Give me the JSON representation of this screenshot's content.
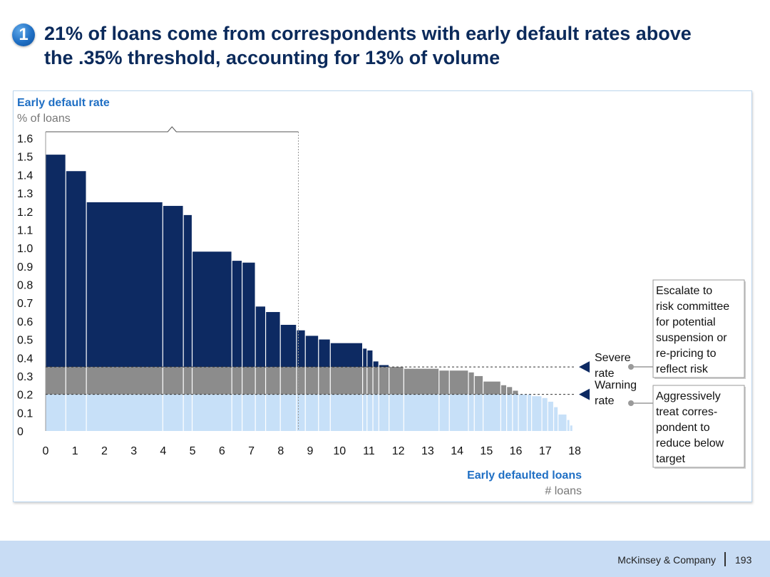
{
  "header": {
    "badge_number": "1",
    "title_line1": "21% of loans come from correspondents with early default rates above",
    "title_line2": "the .35% threshold, accounting for 13% of volume"
  },
  "chart_data": {
    "type": "bar",
    "title": "Early default rate",
    "subtitle": "% of loans",
    "xlabel": "Early defaulted loans",
    "xlabel_unit": "# loans",
    "xlim": [
      0,
      18
    ],
    "ylim": [
      0,
      1.6
    ],
    "x_ticks": [
      "0",
      "1",
      "2",
      "3",
      "4",
      "5",
      "6",
      "7",
      "8",
      "9",
      "10",
      "11",
      "12",
      "13",
      "14",
      "15",
      "16",
      "17",
      "18"
    ],
    "y_ticks": [
      "0",
      "0.1",
      "0.2",
      "0.3",
      "0.4",
      "0.5",
      "0.6",
      "0.7",
      "0.8",
      "0.9",
      "1.0",
      "1.1",
      "1.2",
      "1.3",
      "1.4",
      "1.5",
      "1.6"
    ],
    "bracket_end_x": 8.6,
    "colors": {
      "severe": "#0d2a62",
      "warning": "#8c8c8c",
      "below": "#c7e0f8"
    },
    "thresholds": [
      {
        "name": "severe",
        "value": 0.35,
        "label_line1": "Severe",
        "label_line2": "rate",
        "callout": [
          "Escalate to",
          "risk committee",
          "for potential",
          "suspension or",
          "re-pricing to",
          "reflect risk"
        ]
      },
      {
        "name": "warning",
        "value": 0.2,
        "label_line1": "Warning",
        "label_line2": "rate",
        "callout": [
          "Aggressively",
          "treat corres-",
          "pondent to",
          "reduce below",
          "target"
        ]
      }
    ],
    "bars": [
      {
        "x0": 0.0,
        "x1": 0.7,
        "value": 1.51
      },
      {
        "x0": 0.7,
        "x1": 1.4,
        "value": 1.42
      },
      {
        "x0": 1.4,
        "x1": 4.0,
        "value": 1.25
      },
      {
        "x0": 4.0,
        "x1": 4.7,
        "value": 1.23
      },
      {
        "x0": 4.7,
        "x1": 5.0,
        "value": 1.18
      },
      {
        "x0": 5.0,
        "x1": 6.35,
        "value": 0.98
      },
      {
        "x0": 6.35,
        "x1": 6.7,
        "value": 0.93
      },
      {
        "x0": 6.7,
        "x1": 7.15,
        "value": 0.92
      },
      {
        "x0": 7.15,
        "x1": 7.5,
        "value": 0.68
      },
      {
        "x0": 7.5,
        "x1": 8.0,
        "value": 0.65
      },
      {
        "x0": 8.0,
        "x1": 8.55,
        "value": 0.58
      },
      {
        "x0": 8.55,
        "x1": 8.85,
        "value": 0.55
      },
      {
        "x0": 8.85,
        "x1": 9.3,
        "value": 0.52
      },
      {
        "x0": 9.3,
        "x1": 9.7,
        "value": 0.5
      },
      {
        "x0": 9.7,
        "x1": 10.8,
        "value": 0.48
      },
      {
        "x0": 10.8,
        "x1": 10.95,
        "value": 0.45
      },
      {
        "x0": 10.95,
        "x1": 11.15,
        "value": 0.44
      },
      {
        "x0": 11.15,
        "x1": 11.35,
        "value": 0.38
      },
      {
        "x0": 11.35,
        "x1": 11.7,
        "value": 0.36
      },
      {
        "x0": 11.7,
        "x1": 12.2,
        "value": 0.35
      },
      {
        "x0": 12.2,
        "x1": 13.4,
        "value": 0.34
      },
      {
        "x0": 13.4,
        "x1": 13.75,
        "value": 0.33
      },
      {
        "x0": 13.75,
        "x1": 14.4,
        "value": 0.33
      },
      {
        "x0": 14.4,
        "x1": 14.6,
        "value": 0.32
      },
      {
        "x0": 14.6,
        "x1": 14.9,
        "value": 0.3
      },
      {
        "x0": 14.9,
        "x1": 15.5,
        "value": 0.27
      },
      {
        "x0": 15.5,
        "x1": 15.7,
        "value": 0.25
      },
      {
        "x0": 15.7,
        "x1": 15.9,
        "value": 0.24
      },
      {
        "x0": 15.9,
        "x1": 16.1,
        "value": 0.22
      },
      {
        "x0": 16.1,
        "x1": 16.4,
        "value": 0.2
      },
      {
        "x0": 16.4,
        "x1": 16.55,
        "value": 0.2
      },
      {
        "x0": 16.55,
        "x1": 16.9,
        "value": 0.19
      },
      {
        "x0": 16.9,
        "x1": 17.1,
        "value": 0.18
      },
      {
        "x0": 17.1,
        "x1": 17.3,
        "value": 0.16
      },
      {
        "x0": 17.3,
        "x1": 17.45,
        "value": 0.13
      },
      {
        "x0": 17.45,
        "x1": 17.75,
        "value": 0.09
      },
      {
        "x0": 17.75,
        "x1": 17.85,
        "value": 0.06
      },
      {
        "x0": 17.85,
        "x1": 17.95,
        "value": 0.03
      }
    ]
  },
  "footer": {
    "brand": "McKinsey & Company",
    "page_number": "193"
  }
}
